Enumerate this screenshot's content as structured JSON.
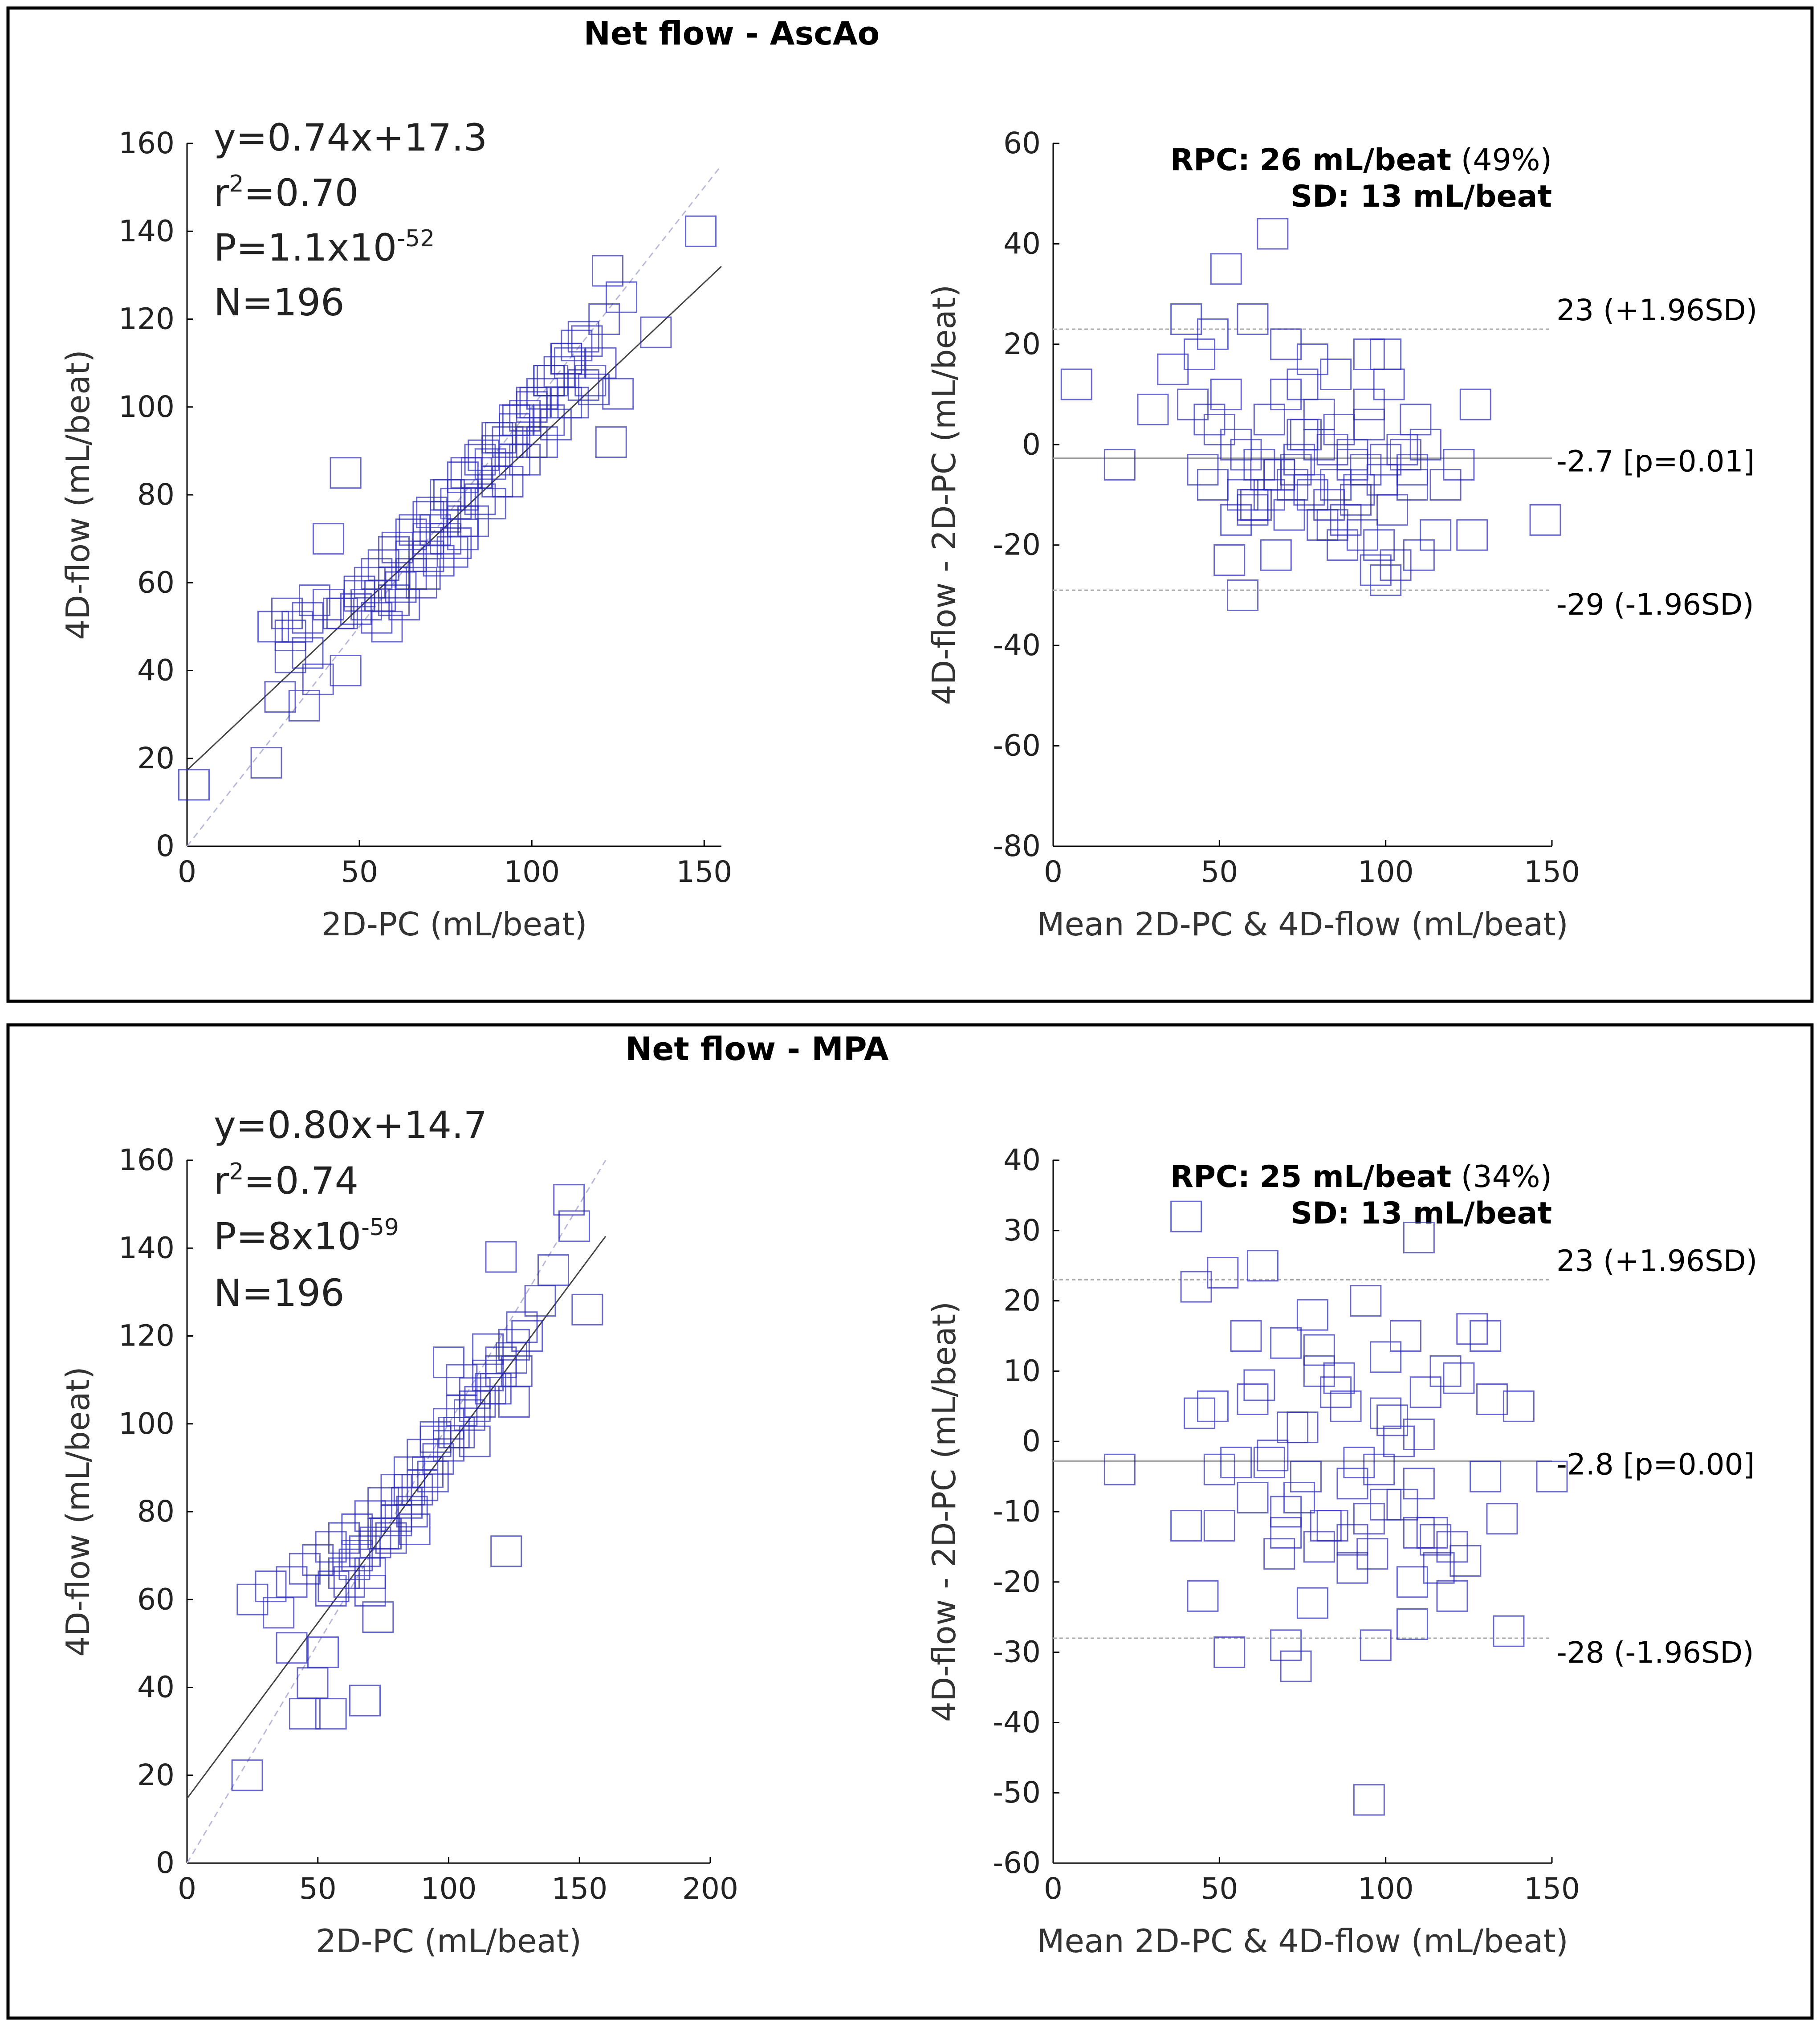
{
  "chart_data": [
    {
      "panel_title": "Net flow - AscAo",
      "charts": [
        {
          "type": "scatter",
          "kind": "regression",
          "xlabel": "2D-PC (mL/beat)",
          "ylabel": "4D-flow (mL/beat)",
          "xlim": [
            0,
            155
          ],
          "ylim": [
            0,
            160
          ],
          "xticks": [
            0,
            50,
            100,
            150
          ],
          "yticks": [
            0,
            20,
            40,
            60,
            80,
            100,
            120,
            140,
            160
          ],
          "stats": {
            "equation": "y=0.74x+17.3",
            "r2_prefix": "r",
            "r2_exp": "2",
            "r2_value": "=0.70",
            "p_prefix": "P=1.1x10",
            "p_exp": "-52",
            "n": "N=196"
          },
          "fit": {
            "slope": 0.74,
            "intercept": 17.3,
            "x_range": [
              0,
              155
            ]
          },
          "identity_line": true,
          "x": [
            2,
            23,
            27,
            30,
            34,
            38,
            46,
            46,
            41,
            35,
            29,
            37,
            25,
            32,
            44,
            49,
            52,
            56,
            62,
            69,
            77,
            80,
            30,
            35,
            41,
            50,
            53,
            57,
            61,
            66,
            71,
            76,
            81,
            86,
            91,
            96,
            101,
            106,
            111,
            116,
            121,
            126,
            136,
            149,
            60,
            65,
            70,
            72,
            75,
            78,
            80,
            84,
            88,
            90,
            93,
            95,
            98,
            100,
            103,
            105,
            108,
            110,
            113,
            115,
            118,
            122,
            125,
            58,
            63,
            68,
            73,
            78,
            83,
            88,
            93,
            98,
            103,
            107,
            112,
            117,
            123,
            55,
            60,
            65,
            70,
            75,
            80,
            85,
            90,
            95,
            100,
            105,
            110,
            115,
            120,
            45,
            50,
            55,
            60,
            65,
            70,
            75,
            80,
            85,
            90,
            95,
            100,
            105,
            110
          ],
          "y": [
            14,
            19,
            34,
            43,
            32,
            38,
            40,
            85,
            70,
            44,
            53,
            56,
            50,
            50,
            53,
            54,
            55,
            57,
            59,
            62,
            67,
            71,
            48,
            52,
            55,
            57,
            60,
            64,
            68,
            72,
            76,
            80,
            85,
            89,
            93,
            97,
            101,
            106,
            110,
            115,
            120,
            125,
            117,
            140,
            60,
            66,
            70,
            72,
            75,
            78,
            80,
            85,
            87,
            90,
            92,
            95,
            98,
            100,
            103,
            106,
            108,
            111,
            114,
            116,
            104,
            131,
            103,
            50,
            55,
            60,
            65,
            69,
            74,
            78,
            83,
            88,
            92,
            96,
            101,
            106,
            92,
            52,
            56,
            62,
            66,
            70,
            74,
            79,
            83,
            88,
            92,
            97,
            101,
            105,
            110,
            53,
            58,
            62,
            67,
            71,
            75,
            80,
            84,
            88,
            93,
            97,
            101,
            106,
            111
          ]
        },
        {
          "type": "scatter",
          "kind": "bland-altman",
          "xlabel": "Mean 2D-PC & 4D-flow (mL/beat)",
          "ylabel": "4D-flow - 2D-PC (mL/beat)",
          "xlim": [
            0,
            150
          ],
          "ylim": [
            -80,
            60
          ],
          "xticks": [
            0,
            50,
            100,
            150
          ],
          "yticks": [
            -80,
            -60,
            -40,
            -20,
            0,
            20,
            40,
            60
          ],
          "rpc_label": "RPC:",
          "rpc_value": "26 mL/beat",
          "rpc_pct": "(49%)",
          "sd_text": "SD: 13 mL/beat",
          "mean_line": -2.7,
          "upper_loa": 23,
          "lower_loa": -29,
          "upper_label": "23 (+1.96SD)",
          "mean_label": "-2.7 [p=0.01]",
          "lower_label": "-29 (-1.96SD)",
          "x": [
            7,
            20,
            30,
            36,
            40,
            44,
            48,
            52,
            52,
            57,
            60,
            66,
            70,
            73,
            78,
            85,
            95,
            100,
            101,
            112,
            110,
            127,
            126,
            148,
            42,
            47,
            50,
            55,
            58,
            62,
            65,
            68,
            72,
            75,
            78,
            80,
            83,
            86,
            88,
            90,
            93,
            95,
            98,
            100,
            103,
            105,
            108,
            45,
            48,
            53,
            57,
            61,
            64,
            67,
            71,
            74,
            77,
            81,
            84,
            87,
            91,
            94,
            97,
            99,
            102,
            106,
            109,
            55,
            60,
            65,
            70,
            75,
            80,
            85,
            90,
            95,
            60,
            68,
            76,
            84,
            92,
            100,
            108,
            115,
            118,
            122
          ],
          "y": [
            12,
            -4,
            7,
            15,
            25,
            18,
            22,
            35,
            10,
            -10,
            25,
            42,
            20,
            -5,
            17,
            14,
            18,
            18,
            12,
            0,
            -22,
            8,
            -18,
            -15,
            8,
            5,
            3,
            0,
            -2,
            -4,
            5,
            -6,
            -8,
            2,
            -10,
            6,
            -12,
            3,
            -15,
            -2,
            -18,
            4,
            -20,
            -3,
            -24,
            -1,
            -8,
            -5,
            -8,
            -23,
            -30,
            -12,
            -6,
            -22,
            -14,
            -3,
            -9,
            -16,
            -1,
            -20,
            -11,
            -5,
            -25,
            -7,
            -13,
            -2,
            5,
            -15,
            -13,
            -10,
            10,
            12,
            0,
            -8,
            -4,
            8,
            -12,
            -6,
            2,
            -16,
            -9,
            -27,
            -5,
            -18,
            -8,
            -4
          ]
        }
      ]
    },
    {
      "panel_title": "Net flow - MPA",
      "charts": [
        {
          "type": "scatter",
          "kind": "regression",
          "xlabel": "2D-PC (mL/beat)",
          "ylabel": "4D-flow (mL/beat)",
          "xlim": [
            0,
            200
          ],
          "ylim": [
            0,
            160
          ],
          "xticks": [
            0,
            50,
            100,
            150,
            200
          ],
          "yticks": [
            0,
            20,
            40,
            60,
            80,
            100,
            120,
            140,
            160
          ],
          "stats": {
            "equation": "y=0.80x+14.7",
            "r2_prefix": "r",
            "r2_exp": "2",
            "r2_value": "=0.74",
            "p_prefix": "P=8x10",
            "p_exp": "-59",
            "n": "N=196"
          },
          "fit": {
            "slope": 0.8,
            "intercept": 14.7,
            "x_range": [
              0,
              160
            ]
          },
          "identity_line": true,
          "x": [
            23,
            25,
            32,
            35,
            40,
            45,
            48,
            52,
            55,
            56,
            68,
            73,
            87,
            122,
            146,
            148,
            153,
            128,
            135,
            140,
            40,
            45,
            50,
            55,
            60,
            65,
            70,
            75,
            80,
            85,
            90,
            95,
            100,
            105,
            110,
            115,
            120,
            125,
            130,
            60,
            64,
            68,
            72,
            76,
            80,
            84,
            88,
            92,
            96,
            100,
            104,
            108,
            112,
            116,
            120,
            124,
            55,
            62,
            70,
            78,
            86,
            94,
            102,
            110,
            118,
            126,
            65,
            75,
            85,
            95,
            105,
            115,
            125,
            70,
            80,
            90,
            100,
            110,
            120
          ],
          "y": [
            20,
            60,
            63,
            57,
            49,
            34,
            41,
            48,
            34,
            63,
            37,
            56,
            76,
            71,
            151,
            145,
            126,
            122,
            128,
            135,
            64,
            67,
            69,
            72,
            74,
            76,
            79,
            82,
            85,
            89,
            93,
            97,
            100,
            103,
            107,
            111,
            114,
            118,
            120,
            66,
            68,
            71,
            73,
            75,
            79,
            82,
            85,
            89,
            92,
            95,
            98,
            102,
            105,
            108,
            112,
            115,
            62,
            64,
            66,
            74,
            80,
            88,
            98,
            104,
            108,
            112,
            70,
            75,
            85,
            96,
            110,
            117,
            105,
            62,
            78,
            86,
            114,
            96,
            138
          ]
        },
        {
          "type": "scatter",
          "kind": "bland-altman",
          "xlabel": "Mean 2D-PC & 4D-flow (mL/beat)",
          "ylabel": "4D-flow - 2D-PC (mL/beat)",
          "xlim": [
            0,
            150
          ],
          "ylim": [
            -60,
            40
          ],
          "xticks": [
            0,
            50,
            100,
            150
          ],
          "yticks": [
            -60,
            -50,
            -40,
            -30,
            -20,
            -10,
            0,
            10,
            20,
            30,
            40
          ],
          "rpc_label": "RPC:",
          "rpc_value": "25 mL/beat",
          "rpc_pct": "(34%)",
          "sd_text": "SD: 13 mL/beat",
          "mean_line": -2.8,
          "upper_loa": 23,
          "lower_loa": -28,
          "upper_label": "23 (+1.96SD)",
          "mean_label": "-2.8 [p=0.00]",
          "lower_label": "-28 (-1.96SD)",
          "x": [
            20,
            40,
            43,
            45,
            50,
            51,
            53,
            63,
            70,
            73,
            78,
            95,
            97,
            108,
            110,
            124,
            130,
            132,
            140,
            150,
            137,
            120,
            40,
            44,
            48,
            55,
            58,
            62,
            66,
            70,
            74,
            78,
            82,
            86,
            90,
            94,
            98,
            102,
            106,
            110,
            114,
            118,
            60,
            65,
            70,
            75,
            80,
            85,
            90,
            95,
            100,
            105,
            110,
            115,
            68,
            72,
            76,
            80,
            84,
            88,
            92,
            96,
            100,
            104,
            108,
            112,
            116,
            120,
            50,
            60,
            70,
            80,
            90,
            100,
            110,
            122,
            126,
            130,
            135
          ],
          "y": [
            -4,
            32,
            22,
            -22,
            -12,
            24,
            -30,
            25,
            -29,
            -32,
            -23,
            -51,
            -29,
            -26,
            29,
            -17,
            15,
            6,
            5,
            -5,
            -27,
            -22,
            -12,
            4,
            5,
            -3,
            15,
            8,
            -2,
            14,
            -8,
            18,
            -12,
            9,
            -14,
            20,
            -4,
            3,
            15,
            -6,
            -13,
            10,
            6,
            -3,
            -10,
            2,
            -15,
            7,
            -6,
            -11,
            4,
            -9,
            1,
            -14,
            -16,
            2,
            -5,
            10,
            -12,
            5,
            -3,
            -16,
            12,
            0,
            -20,
            7,
            -18,
            -15,
            -4,
            -8,
            -13,
            13,
            -18,
            -9,
            -13,
            9,
            16,
            -5,
            -11
          ]
        }
      ]
    }
  ]
}
